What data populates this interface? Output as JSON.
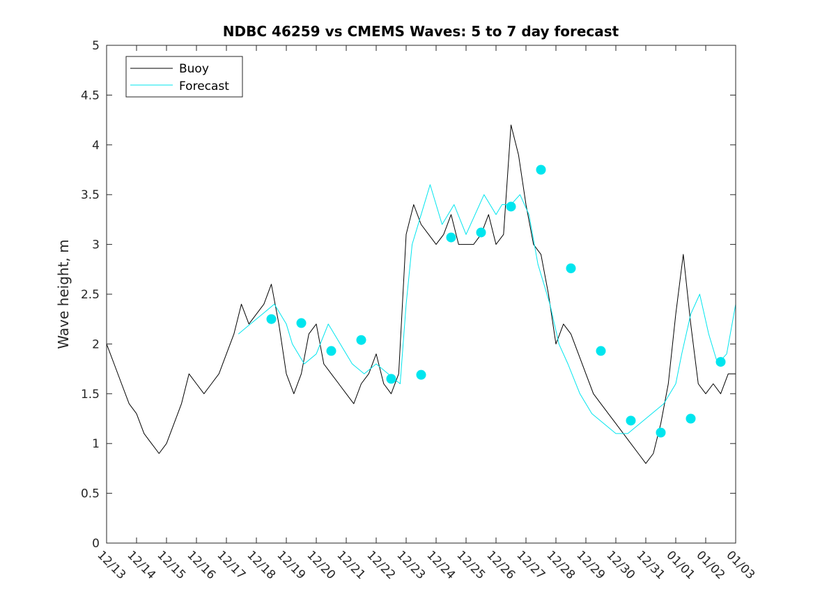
{
  "chart_data": {
    "type": "line",
    "title": "NDBC 46259 vs CMEMS Waves: 5 to 7 day forecast",
    "xlabel": "",
    "ylabel": "Wave height, m",
    "xlim": [
      0,
      21
    ],
    "ylim": [
      0,
      5
    ],
    "grid": false,
    "legend_position": "top-left",
    "x_tick_labels": [
      "12/13",
      "12/14",
      "12/15",
      "12/16",
      "12/17",
      "12/18",
      "12/19",
      "12/20",
      "12/21",
      "12/22",
      "12/23",
      "12/24",
      "12/25",
      "12/26",
      "12/27",
      "12/28",
      "12/29",
      "12/30",
      "12/31",
      "01/01",
      "01/02",
      "01/03"
    ],
    "y_ticks": [
      0,
      0.5,
      1,
      1.5,
      2,
      2.5,
      3,
      3.5,
      4,
      4.5,
      5
    ],
    "y_tick_labels": [
      "0",
      "0.5",
      "1",
      "1.5",
      "2",
      "2.5",
      "3",
      "3.5",
      "4",
      "4.5",
      "5"
    ],
    "colors": {
      "buoy": "#000000",
      "forecast": "#00e5ee"
    },
    "series": [
      {
        "name": "Buoy",
        "x": [
          0,
          0.25,
          0.5,
          0.75,
          1.0,
          1.25,
          1.5,
          1.75,
          2.0,
          2.25,
          2.5,
          2.75,
          3.0,
          3.25,
          3.5,
          3.75,
          4.0,
          4.25,
          4.5,
          4.75,
          5.0,
          5.25,
          5.5,
          5.75,
          6.0,
          6.25,
          6.5,
          6.75,
          7.0,
          7.25,
          7.5,
          7.75,
          8.0,
          8.25,
          8.5,
          8.75,
          9.0,
          9.25,
          9.5,
          9.75,
          10.0,
          10.25,
          10.5,
          10.75,
          11.0,
          11.25,
          11.5,
          11.75,
          12.0,
          12.25,
          12.5,
          12.75,
          13.0,
          13.25,
          13.5,
          13.75,
          14.0,
          14.25,
          14.5,
          14.75,
          15.0,
          15.25,
          15.5,
          15.75,
          16.0,
          16.25,
          16.5,
          16.75,
          17.0,
          17.25,
          17.5,
          17.75,
          18.0,
          18.25,
          18.5,
          18.75,
          19.0,
          19.25,
          19.5,
          19.75,
          20.0,
          20.25,
          20.5,
          20.75,
          21.0
        ],
        "values": [
          2.0,
          1.8,
          1.6,
          1.4,
          1.3,
          1.1,
          1.0,
          0.9,
          1.0,
          1.2,
          1.4,
          1.7,
          1.6,
          1.5,
          1.6,
          1.7,
          1.9,
          2.1,
          2.4,
          2.2,
          2.3,
          2.4,
          2.6,
          2.2,
          1.7,
          1.5,
          1.7,
          2.1,
          2.2,
          1.8,
          1.7,
          1.6,
          1.5,
          1.4,
          1.6,
          1.7,
          1.9,
          1.6,
          1.5,
          1.7,
          3.1,
          3.4,
          3.2,
          3.1,
          3.0,
          3.1,
          3.3,
          3.0,
          3.0,
          3.0,
          3.1,
          3.3,
          3.0,
          3.1,
          4.2,
          3.9,
          3.4,
          3.0,
          2.9,
          2.5,
          2.0,
          2.2,
          2.1,
          1.9,
          1.7,
          1.5,
          1.4,
          1.3,
          1.2,
          1.1,
          1.0,
          0.9,
          0.8,
          0.9,
          1.2,
          1.6,
          2.3,
          2.9,
          2.2,
          1.6,
          1.5,
          1.6,
          1.5,
          1.7,
          1.7
        ]
      },
      {
        "name": "Forecast",
        "x": [
          4.4,
          4.8,
          5.2,
          5.6,
          6.0,
          6.2,
          6.6,
          7.0,
          7.4,
          7.8,
          8.2,
          8.6,
          9.0,
          9.4,
          9.8,
          10.0,
          10.2,
          10.5,
          10.8,
          11.2,
          11.6,
          12.0,
          12.3,
          12.6,
          13.0,
          13.2,
          13.5,
          13.8,
          14.1,
          14.4,
          14.8,
          15.1,
          15.4,
          15.8,
          16.2,
          16.6,
          17.0,
          17.4,
          17.8,
          18.2,
          18.6,
          19.0,
          19.2,
          19.5,
          19.8,
          20.1,
          20.4,
          20.7,
          21.0
        ],
        "values": [
          2.1,
          2.2,
          2.3,
          2.4,
          2.2,
          2.0,
          1.8,
          1.9,
          2.2,
          2.0,
          1.8,
          1.7,
          1.8,
          1.7,
          1.6,
          2.4,
          3.0,
          3.3,
          3.6,
          3.2,
          3.4,
          3.1,
          3.3,
          3.5,
          3.3,
          3.4,
          3.4,
          3.5,
          3.3,
          2.8,
          2.4,
          2.0,
          1.8,
          1.5,
          1.3,
          1.2,
          1.1,
          1.1,
          1.2,
          1.3,
          1.4,
          1.6,
          1.9,
          2.3,
          2.5,
          2.1,
          1.8,
          1.9,
          2.4
        ]
      }
    ],
    "forecast_markers": {
      "x": [
        5.5,
        6.5,
        7.5,
        8.5,
        9.5,
        10.5,
        11.5,
        12.5,
        13.5,
        14.5,
        15.5,
        16.5,
        17.5,
        18.5,
        19.5,
        20.5
      ],
      "values": [
        2.25,
        2.21,
        1.93,
        2.04,
        1.65,
        1.69,
        3.07,
        3.12,
        3.38,
        3.75,
        2.76,
        1.93,
        1.23,
        1.11,
        1.25,
        1.82
      ]
    }
  }
}
